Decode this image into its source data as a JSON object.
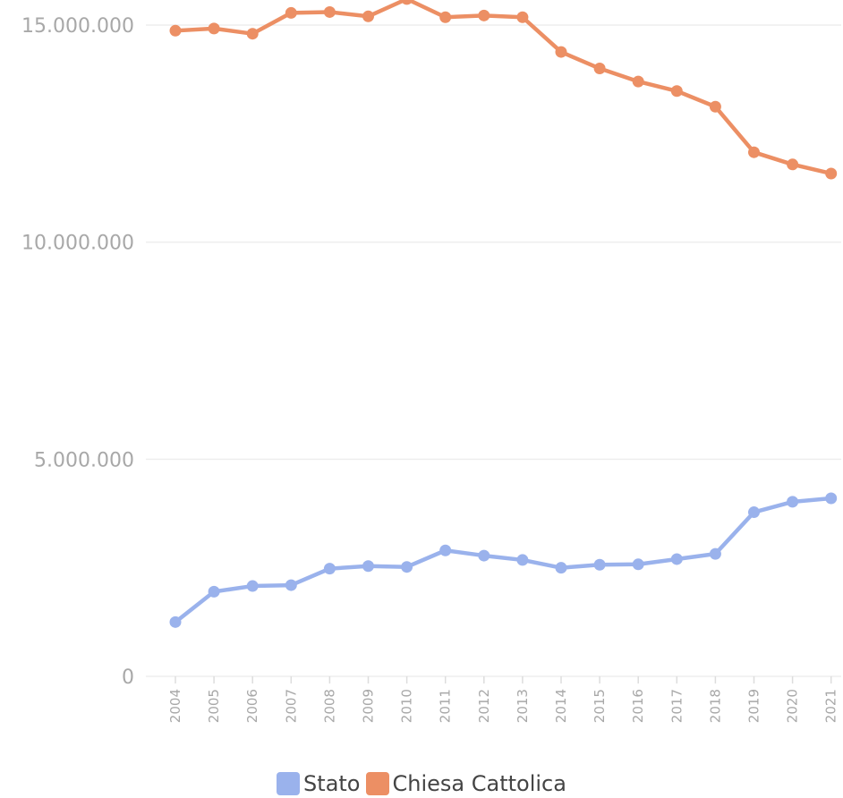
{
  "chart_data": {
    "type": "line",
    "title": "",
    "xlabel": "",
    "ylabel": "",
    "x": [
      "2004",
      "2005",
      "2006",
      "2007",
      "2008",
      "2009",
      "2010",
      "2011",
      "2012",
      "2013",
      "2014",
      "2015",
      "2016",
      "2017",
      "2018",
      "2019",
      "2020",
      "2021"
    ],
    "y_ticks": [
      {
        "value": 0,
        "label": "0"
      },
      {
        "value": 5000000,
        "label": "5.000.000"
      },
      {
        "value": 10000000,
        "label": "10.000.000"
      },
      {
        "value": 15000000,
        "label": "15.000.000"
      }
    ],
    "ylim": [
      0,
      15600000
    ],
    "grid": true,
    "legend_position": "bottom",
    "series": [
      {
        "name": "Stato",
        "color": "#9ab2ec",
        "values": [
          1250000,
          1950000,
          2080000,
          2100000,
          2480000,
          2540000,
          2520000,
          2900000,
          2780000,
          2680000,
          2500000,
          2570000,
          2580000,
          2700000,
          2820000,
          3780000,
          4020000,
          4100000
        ]
      },
      {
        "name": "Chiesa Cattolica",
        "color": "#ec8f64",
        "values": [
          14870000,
          14920000,
          14800000,
          15280000,
          15300000,
          15200000,
          15600000,
          15180000,
          15220000,
          15180000,
          14380000,
          14000000,
          13700000,
          13480000,
          13120000,
          12070000,
          11790000,
          11580000
        ]
      }
    ]
  }
}
